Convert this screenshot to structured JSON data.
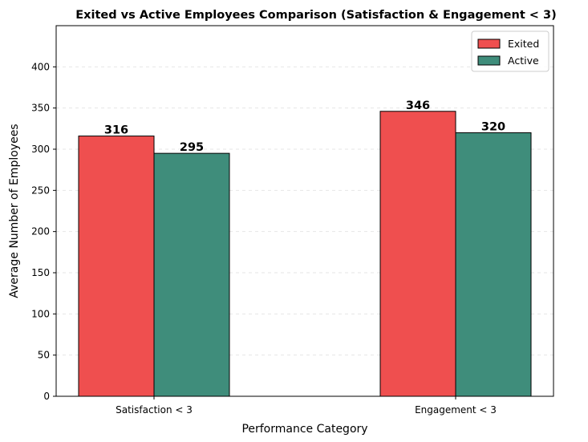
{
  "chart_data": {
    "type": "bar",
    "title": "Exited vs Active Employees Comparison (Satisfaction & Engagement < 3)",
    "xlabel": "Performance Category",
    "ylabel": "Average Number of Employees",
    "categories": [
      "Satisfaction < 3",
      "Engagement < 3"
    ],
    "series": [
      {
        "name": "Exited",
        "values": [
          316,
          346
        ],
        "color": "#ef4f4f"
      },
      {
        "name": "Active",
        "values": [
          295,
          320
        ],
        "color": "#3f8d7b"
      }
    ],
    "ylim": [
      0,
      450
    ],
    "yticks": [
      0,
      50,
      100,
      150,
      200,
      250,
      300,
      350,
      400
    ],
    "grid": true,
    "legend_position": "top-right"
  }
}
